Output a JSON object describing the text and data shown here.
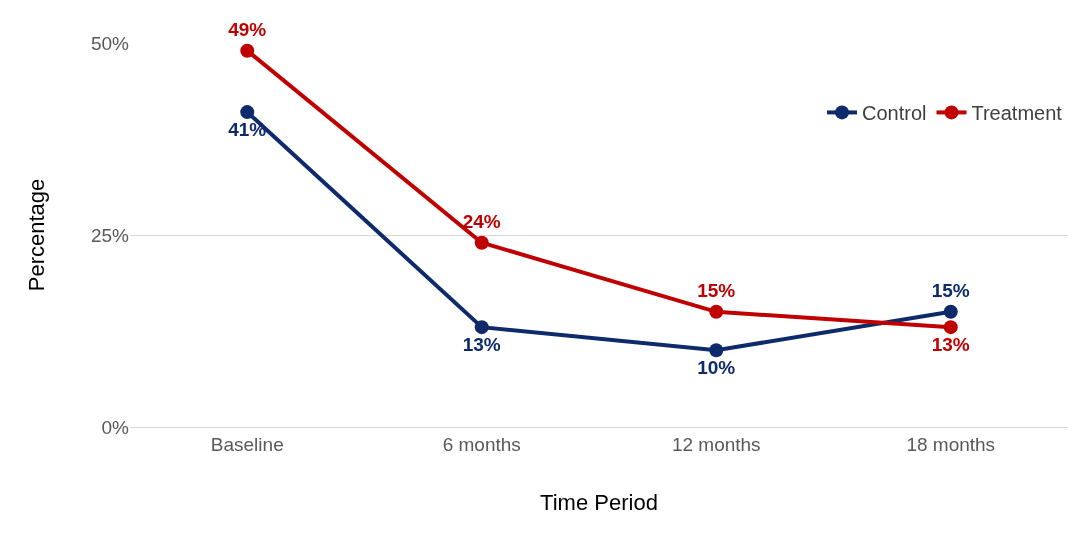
{
  "chart_data": {
    "type": "line",
    "xlabel": "Time Period",
    "ylabel": "Percentage",
    "categories": [
      "Baseline",
      "6 months",
      "12 months",
      "18 months"
    ],
    "series": [
      {
        "name": "Control",
        "color": "#0e2a6b",
        "values": [
          41,
          13,
          10,
          15
        ],
        "value_labels": [
          "41%",
          "13%",
          "10%",
          "15%"
        ]
      },
      {
        "name": "Treatment",
        "color": "#c00000",
        "values": [
          49,
          24,
          15,
          13
        ],
        "value_labels": [
          "49%",
          "24%",
          "15%",
          "13%"
        ]
      }
    ],
    "ylim": [
      0,
      50
    ],
    "yticks": [
      {
        "value": 0,
        "label": "0%"
      },
      {
        "value": 25,
        "label": "25%"
      },
      {
        "value": 50,
        "label": "50%"
      }
    ],
    "grid": "y",
    "legend": "top right",
    "marker": "circle",
    "line_style": "solid"
  }
}
